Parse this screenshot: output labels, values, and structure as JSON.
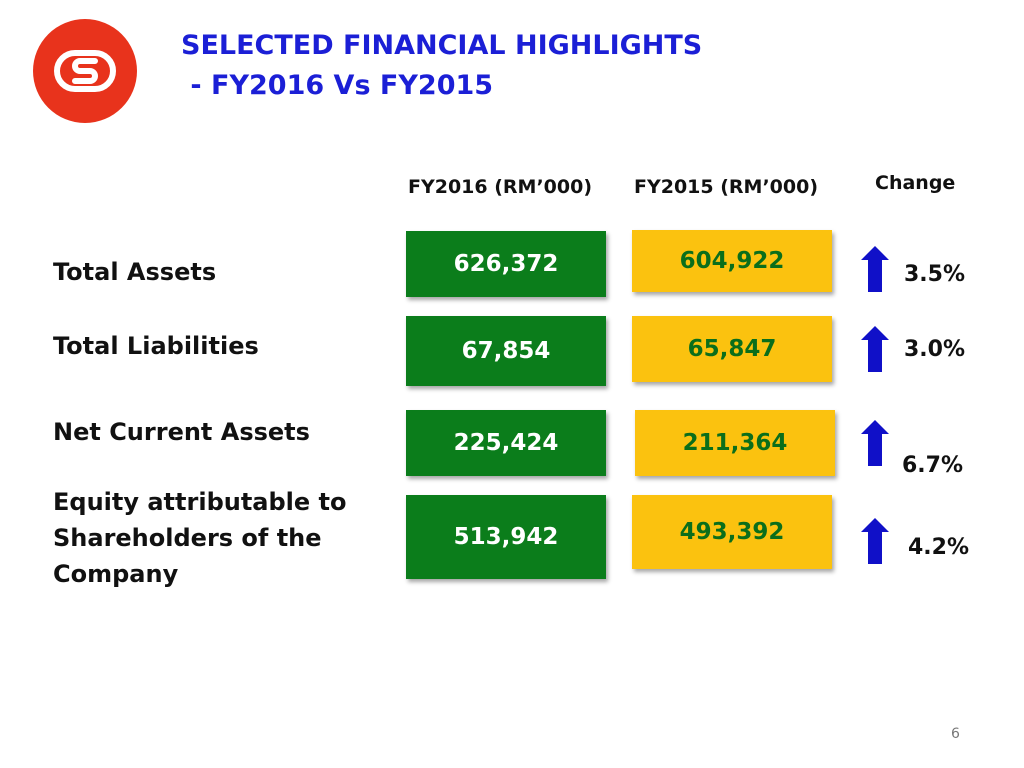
{
  "title": {
    "line1": "SELECTED FINANCIAL HIGHLIGHTS",
    "line2": " - FY2016 Vs FY2015"
  },
  "columns": {
    "fy2016": "FY2016 (RM’000)",
    "fy2015": "FY2015 (RM’000)",
    "change": "Change"
  },
  "rows": [
    {
      "label": "Total Assets",
      "fy2016": "626,372",
      "fy2015": "604,922",
      "change": "3.5%"
    },
    {
      "label": "Total Liabilities",
      "fy2016": "67,854",
      "fy2015": "65,847",
      "change": "3.0%"
    },
    {
      "label": "Net Current Assets",
      "fy2016": "225,424",
      "fy2015": "211,364",
      "change": "6.7%"
    },
    {
      "label": "Equity attributable to Shareholders of the Company",
      "fy2016": "513,942",
      "fy2015": "493,392",
      "change": "4.2%"
    }
  ],
  "colors": {
    "title": "#1b1fd6",
    "fy2016_box": "#0b7d1b",
    "fy2015_box": "#fbc20f",
    "fy2015_text": "#0b6e1b",
    "arrow": "#1010c8",
    "logo": "#e8331c"
  },
  "icons": {
    "logo": "company-logo",
    "change": "up-arrow-icon"
  },
  "page_number": "6"
}
